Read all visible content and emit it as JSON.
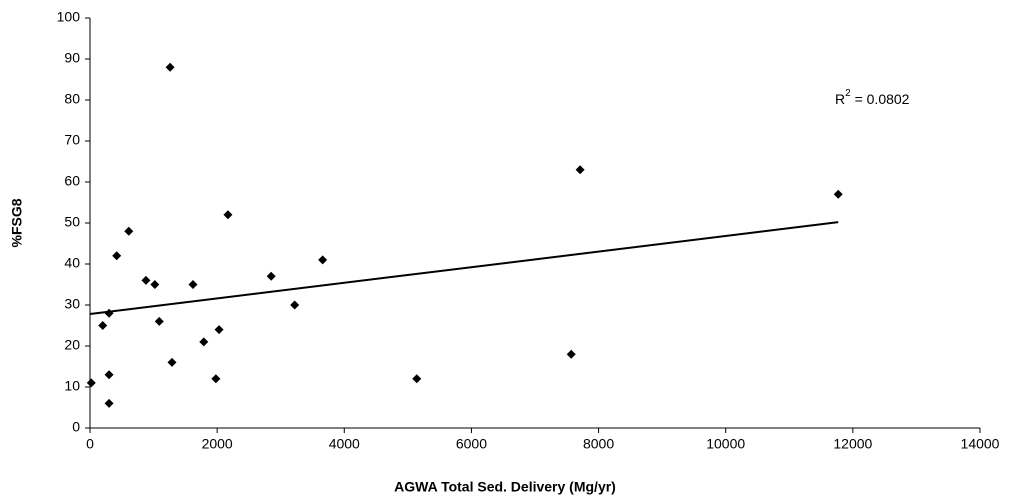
{
  "chart_data": {
    "type": "scatter",
    "x_label": "AGWA Total Sed. Delivery (Mg/yr)",
    "y_label": "%FSG8",
    "annotation": [
      "R",
      "2",
      " = 0.0802"
    ],
    "grid": false,
    "series": [
      {
        "name": "%FSG8",
        "color": "#000000",
        "x": [
          20,
          200,
          300,
          300,
          300,
          420,
          610,
          880,
          1020,
          1090,
          1260,
          1290,
          1620,
          1790,
          1980,
          2030,
          2170,
          2850,
          3220,
          3660,
          5140,
          7570,
          7710,
          11770
        ],
        "values": [
          11,
          25,
          13,
          6,
          28,
          42,
          48,
          36,
          35,
          26,
          88,
          16,
          35,
          21,
          12,
          24,
          52,
          37,
          30,
          41,
          12,
          18,
          63,
          57
        ]
      }
    ],
    "trendline": {
      "color": "#000000",
      "x": [
        0,
        11770
      ],
      "values": [
        27.8,
        50.2
      ]
    },
    "xlim": [
      0,
      14000
    ],
    "xticks": [
      0,
      2000,
      4000,
      6000,
      8000,
      10000,
      12000,
      14000
    ],
    "ylim": [
      0,
      100
    ],
    "yticks": [
      0,
      10,
      20,
      30,
      40,
      50,
      60,
      70,
      80,
      90,
      100
    ]
  }
}
